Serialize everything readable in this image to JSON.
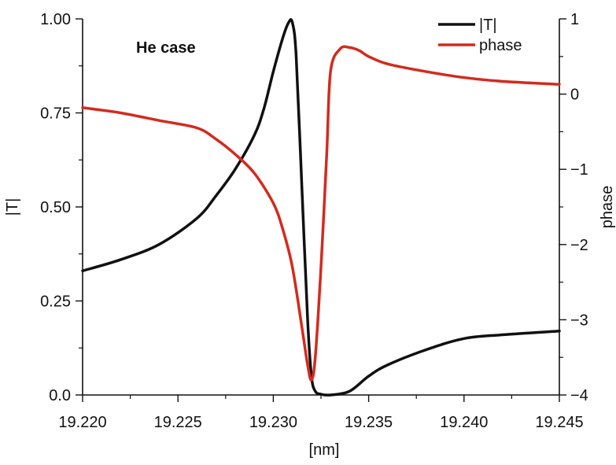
{
  "chart_data": {
    "type": "line",
    "title": "",
    "annotation": "He case",
    "xlabel": "[nm]",
    "ylabel_left": "|T|",
    "ylabel_right": "phase",
    "xlim": [
      19.22,
      19.245
    ],
    "ylim_left": [
      0,
      1
    ],
    "ylim_right": [
      -4,
      1
    ],
    "x_ticks": [
      "19.220",
      "19.225",
      "19.230",
      "19.235",
      "19.240",
      "19.245"
    ],
    "y_left_ticks": [
      "0.0",
      "0.25",
      "0.50",
      "0.75",
      "1.00"
    ],
    "y_right_ticks": [
      "1",
      "0",
      "−1",
      "−2",
      "−3",
      "−4"
    ],
    "grid": false,
    "legend_position": "top-right",
    "series": [
      {
        "name": "|T|",
        "axis": "left",
        "color": "#111111",
        "x": [
          19.22,
          19.222,
          19.224,
          19.226,
          19.227,
          19.228,
          19.229,
          19.2295,
          19.23,
          19.2305,
          19.2308,
          19.231,
          19.2312,
          19.2315,
          19.2318,
          19.232,
          19.2322,
          19.2325,
          19.233,
          19.234,
          19.235,
          19.236,
          19.238,
          19.24,
          19.242,
          19.245
        ],
        "values": [
          0.33,
          0.36,
          0.4,
          0.47,
          0.53,
          0.6,
          0.69,
          0.76,
          0.86,
          0.95,
          0.99,
          0.99,
          0.9,
          0.55,
          0.2,
          0.05,
          0.01,
          0.002,
          0.0,
          0.01,
          0.05,
          0.08,
          0.12,
          0.15,
          0.16,
          0.17
        ]
      },
      {
        "name": "phase",
        "axis": "right",
        "color": "#d42a1e",
        "x": [
          19.22,
          19.222,
          19.224,
          19.226,
          19.227,
          19.228,
          19.229,
          19.23,
          19.2305,
          19.231,
          19.2315,
          19.2318,
          19.232,
          19.2322,
          19.2325,
          19.2328,
          19.233,
          19.2335,
          19.234,
          19.2345,
          19.235,
          19.236,
          19.238,
          19.24,
          19.242,
          19.245
        ],
        "values": [
          -0.18,
          -0.25,
          -0.35,
          -0.45,
          -0.6,
          -0.8,
          -1.05,
          -1.45,
          -1.8,
          -2.3,
          -3.1,
          -3.6,
          -3.8,
          -3.5,
          -2.3,
          -0.8,
          0.3,
          0.6,
          0.62,
          0.58,
          0.5,
          0.4,
          0.3,
          0.22,
          0.17,
          0.13
        ]
      }
    ]
  }
}
